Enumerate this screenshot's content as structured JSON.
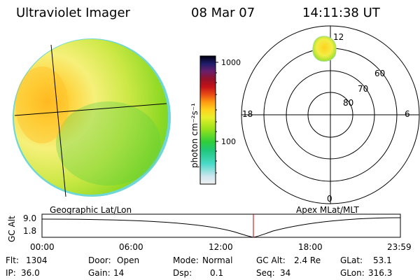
{
  "header": {
    "instrument": "Ultraviolet Imager",
    "date": "08 Mar 07",
    "time": "14:11:38 UT"
  },
  "colorbar": {
    "unit_label": "photon cm⁻²s⁻¹",
    "tick_1000": "1000",
    "tick_100": "100",
    "colors": [
      "#f0f0f0",
      "#cfe6ef",
      "#49d9c7",
      "#21c77e",
      "#2fce3a",
      "#98e21c",
      "#e9ef2c",
      "#ffd21e",
      "#ff9b12",
      "#e84b14",
      "#c4121a",
      "#93122a",
      "#6a1f6b",
      "#1f1d6c",
      "#000010"
    ]
  },
  "left_panel": {
    "caption": "Geographic Lat/Lon"
  },
  "polar_plot": {
    "caption": "Apex MLat/MLT",
    "mlt_labels": {
      "top": "12",
      "left": "18",
      "right": "6",
      "bottom": "0"
    },
    "lat_labels": [
      "60",
      "70",
      "80"
    ]
  },
  "altitude_strip": {
    "axis_label": "GC Alt",
    "ymax": "9.0",
    "ymin": "1.8",
    "time_ticks": [
      "00:00",
      "06:00",
      "12:00",
      "18:00",
      "23:59"
    ],
    "current_time_color": "#c00000"
  },
  "status": {
    "flt_label": "Flt:",
    "flt_value": "1304",
    "ip_label": "IP:",
    "ip_value": "36.0",
    "door_label": "Door:",
    "door_value": "Open",
    "gain_label": "Gain:",
    "gain_value": "14",
    "mode_label": "Mode:",
    "mode_value": "Normal",
    "dsp_label": "Dsp:",
    "dsp_value": "0.1",
    "gcalt_label": "GC Alt:",
    "gcalt_value": "2.4 Re",
    "seq_label": "Seq:",
    "seq_value": "34",
    "glat_label": "GLat:",
    "glat_value": "53.1",
    "glon_label": "GLon:",
    "glon_value": "316.3"
  }
}
